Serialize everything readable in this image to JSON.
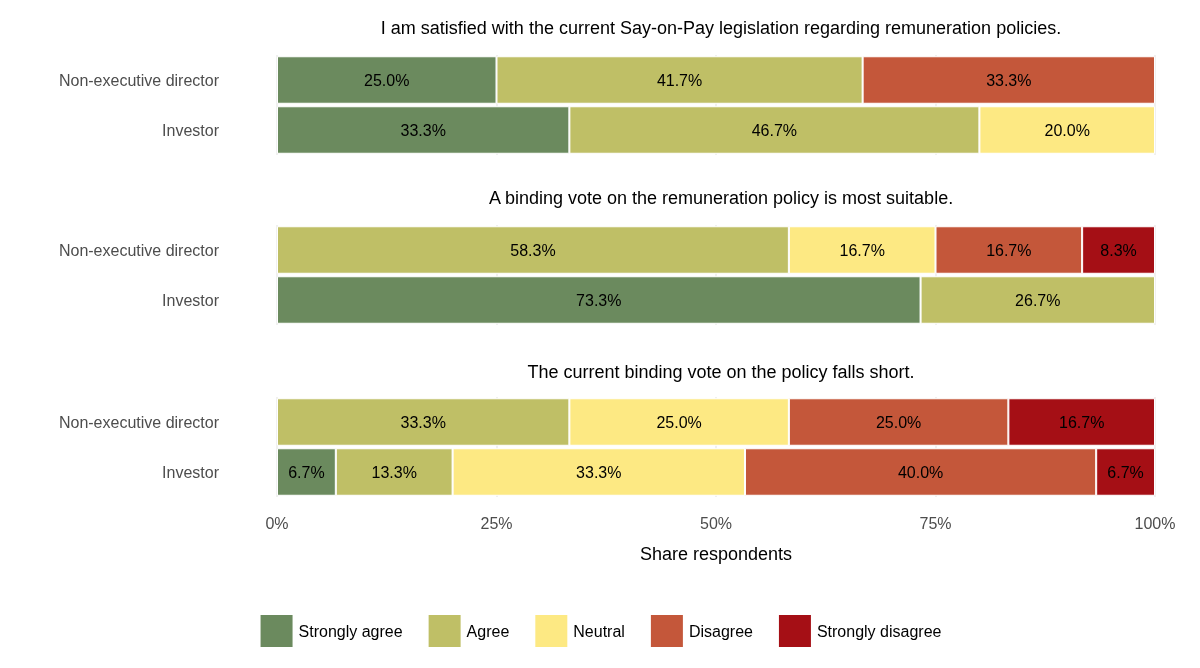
{
  "chart_data": [
    {
      "type": "bar",
      "orientation": "horizontal",
      "stacked": true,
      "title": "I am satisfied with the current Say-on-Pay legislation regarding remuneration policies.",
      "categories": [
        "Non-executive director",
        "Investor"
      ],
      "xlim": [
        0,
        100
      ],
      "xticks": [
        {
          "value": 0,
          "label": null
        },
        {
          "value": 25,
          "label": null
        },
        {
          "value": 50,
          "label": null
        },
        {
          "value": 75,
          "label": null
        },
        {
          "value": 100,
          "label": null
        }
      ],
      "grid": "x",
      "tick_labels": "y",
      "legend": false,
      "series": [
        {
          "color": "#6b8a5e",
          "values": [
            25.0,
            33.3
          ],
          "value_labels": [
            "25.0%",
            "33.3%"
          ]
        },
        {
          "color": "#bfbf66",
          "values": [
            41.7,
            46.7
          ],
          "value_labels": [
            "41.7%",
            "46.7%"
          ]
        },
        {
          "color": "#fde983",
          "values": [
            null,
            20.0
          ],
          "value_labels": [
            null,
            "20.0%"
          ]
        },
        {
          "color": "#c4573a",
          "values": [
            33.3,
            null
          ],
          "value_labels": [
            "33.3%",
            null
          ]
        },
        {
          "color": "#a50f15",
          "values": [
            null,
            null
          ],
          "value_labels": [
            null,
            null
          ]
        }
      ]
    },
    {
      "type": "bar",
      "orientation": "horizontal",
      "stacked": true,
      "title": "A binding vote on the remuneration policy is most suitable.",
      "categories": [
        "Non-executive director",
        "Investor"
      ],
      "xlim": [
        0,
        100
      ],
      "xticks": [
        {
          "value": 0,
          "label": null
        },
        {
          "value": 25,
          "label": null
        },
        {
          "value": 50,
          "label": null
        },
        {
          "value": 75,
          "label": null
        },
        {
          "value": 100,
          "label": null
        }
      ],
      "grid": "x",
      "tick_labels": "y",
      "legend": false,
      "series": [
        {
          "color": "#6b8a5e",
          "values": [
            null,
            73.3
          ],
          "value_labels": [
            null,
            "73.3%"
          ]
        },
        {
          "color": "#bfbf66",
          "values": [
            58.3,
            26.7
          ],
          "value_labels": [
            "58.3%",
            "26.7%"
          ]
        },
        {
          "color": "#fde983",
          "values": [
            16.7,
            null
          ],
          "value_labels": [
            "16.7%",
            null
          ]
        },
        {
          "color": "#c4573a",
          "values": [
            16.7,
            null
          ],
          "value_labels": [
            "16.7%",
            null
          ]
        },
        {
          "color": "#a50f15",
          "values": [
            8.3,
            null
          ],
          "value_labels": [
            "8.3%",
            null
          ]
        }
      ]
    },
    {
      "type": "bar",
      "orientation": "horizontal",
      "stacked": true,
      "title": "The current binding vote on the policy falls short.",
      "xlabel": "Share respondents",
      "categories": [
        "Non-executive director",
        "Investor"
      ],
      "xlim": [
        0,
        100
      ],
      "xticks": [
        {
          "value": 0,
          "label": "0%"
        },
        {
          "value": 25,
          "label": "25%"
        },
        {
          "value": 50,
          "label": "50%"
        },
        {
          "value": 75,
          "label": "75%"
        },
        {
          "value": 100,
          "label": "100%"
        }
      ],
      "grid": "x",
      "legend": "bottom",
      "series": [
        {
          "name": "Strongly agree",
          "color": "#6b8a5e",
          "values": [
            null,
            6.7
          ],
          "value_labels": [
            null,
            "6.7%"
          ]
        },
        {
          "name": "Agree",
          "color": "#bfbf66",
          "values": [
            33.3,
            13.3
          ],
          "value_labels": [
            "33.3%",
            "13.3%"
          ]
        },
        {
          "name": "Neutral",
          "color": "#fde983",
          "values": [
            25.0,
            33.3
          ],
          "value_labels": [
            "25.0%",
            "33.3%"
          ]
        },
        {
          "name": "Disagree",
          "color": "#c4573a",
          "values": [
            25.0,
            40.0
          ],
          "value_labels": [
            "25.0%",
            "40.0%"
          ]
        },
        {
          "name": "Strongly disagree",
          "color": "#a50f15",
          "values": [
            16.7,
            6.7
          ],
          "value_labels": [
            "16.7%",
            "6.7%"
          ]
        }
      ]
    }
  ]
}
